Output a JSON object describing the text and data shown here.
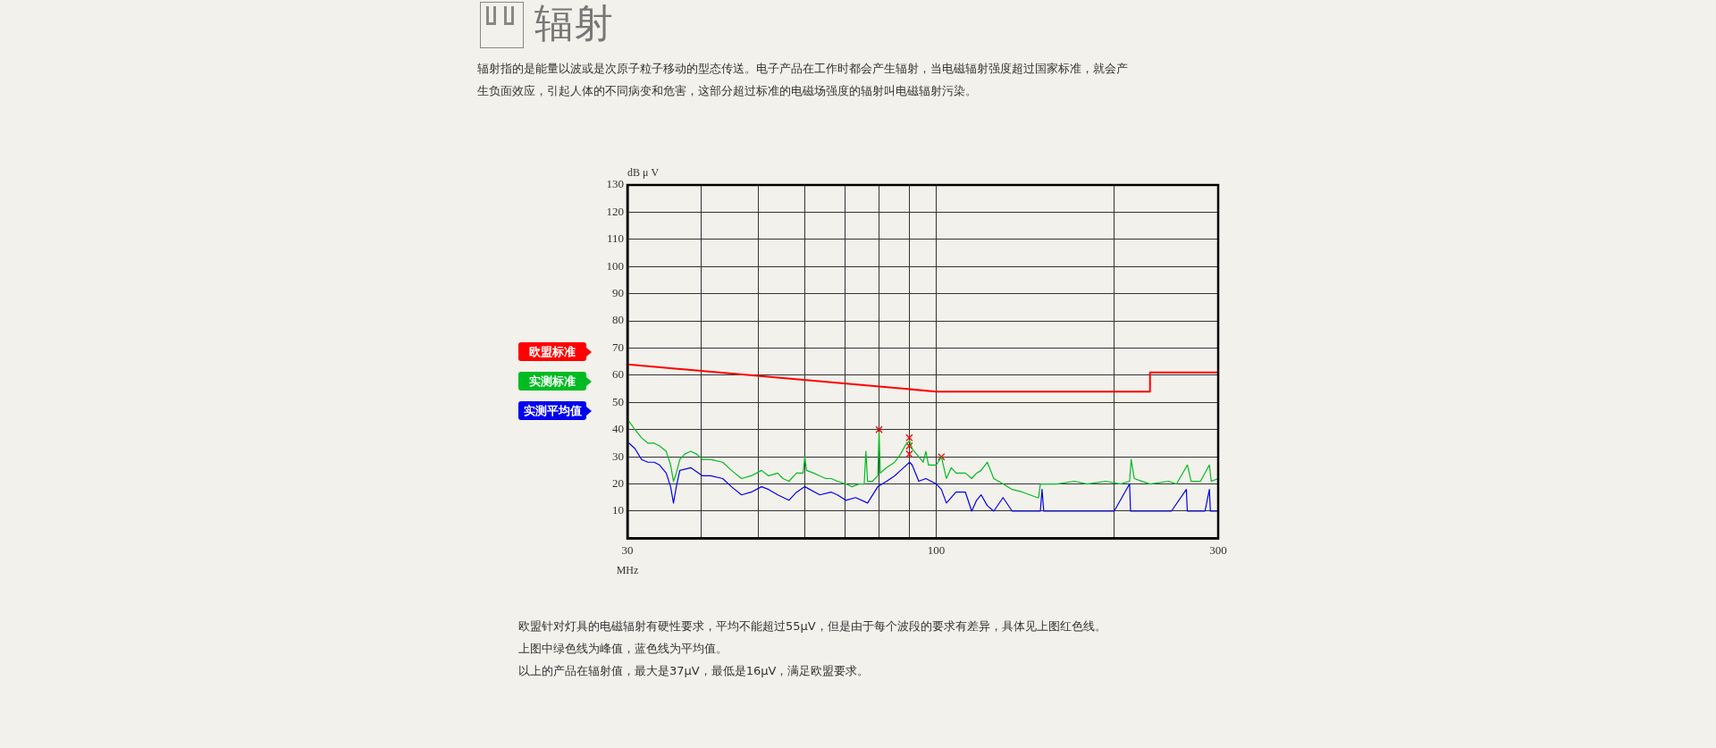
{
  "chart_data": {
    "type": "line",
    "title": "辐射",
    "subtitle": "辐射指的是能量以波或是次原子粒子移动的型态传送。电子产品在工作时都会产生辐射，当电磁辐射强度超过国家标准，就会产生负面效应，引起人体的不同病变和危害，这部分超过标准的电磁场强度的辐射叫电磁辐射污染。",
    "xlabel": "MHz",
    "ylabel": "dB μ V",
    "log": "x",
    "grid": true,
    "legend": "left",
    "line_style": "solid",
    "xlim": [
      30,
      300
    ],
    "ylim": [
      0,
      130
    ],
    "xticks": [
      30,
      {
        "value": 40,
        "label": null
      },
      {
        "value": 50,
        "label": null
      },
      {
        "value": 60,
        "label": null
      },
      {
        "value": 70,
        "label": null
      },
      {
        "value": 80,
        "label": null
      },
      {
        "value": 90,
        "label": null
      },
      100,
      {
        "value": 200,
        "label": null
      },
      300
    ],
    "yticks": [
      10,
      20,
      30,
      40,
      50,
      60,
      70,
      80,
      90,
      100,
      110,
      120,
      130
    ],
    "series": [
      {
        "name": "欧盟标准",
        "color": "#ff0000",
        "x": [
          30,
          100,
          230,
          230,
          300
        ],
        "values": [
          64,
          54,
          54,
          61,
          61
        ]
      },
      {
        "name": "实测标准",
        "color": "#00bb22",
        "x": [
          30,
          30.2,
          30.9,
          31.7,
          32.5,
          33.3,
          34,
          34.9,
          35.5,
          35.9,
          36.3,
          36.8,
          37.5,
          38.4,
          39.3,
          40.2,
          41.5,
          43.5,
          45,
          46.8,
          48.6,
          50.6,
          52,
          53.9,
          55,
          56.3,
          58,
          59.5,
          59.9,
          60.3,
          62,
          63.5,
          65,
          66.4,
          68,
          70.3,
          72,
          74,
          75.5,
          76,
          76.5,
          78,
          79.6,
          80,
          80.4,
          82.4,
          85,
          87,
          88.5,
          90.1,
          91,
          93.4,
          95,
          96,
          97,
          100,
          102,
          104,
          106,
          108,
          112,
          114.8,
          117,
          119.1,
          122,
          125.1,
          129.7,
          134.4,
          140,
          148.2,
          149,
          150,
          160,
          171.3,
          180,
          193.6,
          205,
          212.4,
          213.7,
          216.3,
          230,
          247.3,
          255,
          266.1,
          270,
          280,
          289.9,
          292,
          300
        ],
        "values": [
          44,
          43,
          40,
          37,
          35,
          35,
          34,
          32,
          27,
          21,
          24,
          29,
          31,
          32,
          31,
          29,
          29,
          28,
          25,
          22,
          23,
          25,
          23,
          24,
          22,
          21,
          24,
          24,
          30,
          25,
          24,
          23,
          22,
          22,
          21,
          20,
          19,
          20,
          20,
          32,
          21,
          21,
          23,
          39,
          24,
          26,
          28,
          31,
          34,
          36,
          33,
          30,
          28,
          32,
          27,
          27,
          30,
          22,
          26,
          24,
          24,
          22,
          24,
          25,
          28,
          22,
          20,
          18,
          17,
          15,
          15,
          20,
          20,
          21,
          20,
          21,
          20,
          21,
          29,
          22,
          20,
          21,
          20,
          27,
          21,
          21,
          27,
          21,
          22
        ]
      },
      {
        "name": "实测平均值",
        "color": "#0000ee",
        "x": [
          30,
          30.2,
          30.9,
          31.7,
          32.5,
          33.3,
          34,
          34.9,
          35.5,
          35.9,
          36.3,
          36.8,
          38.4,
          40.2,
          41.5,
          43.5,
          45,
          46.8,
          48.6,
          50.6,
          52,
          53.9,
          56.3,
          58,
          59.9,
          63.5,
          66.4,
          68,
          70.3,
          73,
          76.5,
          79.6,
          82.4,
          85,
          87,
          90.1,
          91,
          93.4,
          96,
          100,
          102,
          104,
          108,
          112,
          114.8,
          117,
          119.1,
          122,
          125.1,
          129.7,
          134.4,
          140,
          148.2,
          150,
          151,
          152,
          171.3,
          180,
          193.6,
          200,
          212.4,
          213.2,
          230,
          250,
          265,
          266,
          285,
          289.9,
          291,
          300
        ],
        "values": [
          35,
          35,
          33,
          29,
          28,
          28,
          27,
          24,
          19,
          13,
          19,
          25,
          26,
          23,
          23,
          22,
          19,
          16,
          17,
          19,
          18,
          16,
          14,
          17,
          19,
          16,
          17,
          16,
          14,
          15,
          13,
          19,
          21,
          23,
          25,
          28,
          27,
          21,
          22,
          20,
          18,
          13,
          17,
          17,
          10,
          14,
          16,
          12,
          10,
          15,
          10,
          10,
          10,
          10,
          18,
          10,
          10,
          10,
          10,
          10,
          20,
          10,
          10,
          10,
          18,
          10,
          10,
          18,
          10,
          10
        ]
      },
      {
        "type": "scatter",
        "color": "#ff0000",
        "marker": "cross",
        "x": [
          80,
          90,
          90,
          90,
          102
        ],
        "values": [
          40,
          37,
          34,
          31,
          30
        ]
      }
    ],
    "annotations": [
      "欧盟针对灯具的电磁辐射有硬性要求，平均不能超过55μV，但是由于每个波段的要求有差异，具体见上图红色线。",
      "上图中绿色线为峰值，蓝色线为平均值。",
      "以上的产品在辐射值，最大是37μV，最低是16μV，满足欧盟要求。"
    ]
  }
}
